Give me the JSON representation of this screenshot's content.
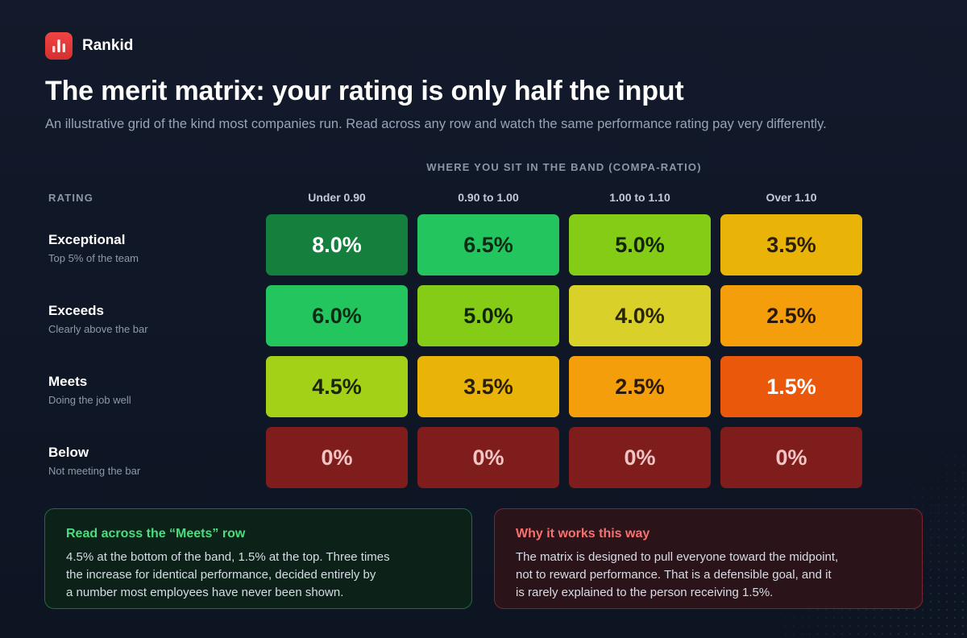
{
  "brand": {
    "name": "Rankid",
    "logo_icon": "bar-chart-icon",
    "logo_color": "#e53935"
  },
  "header": {
    "title": "The merit matrix: your rating is only half the input",
    "subtitle": "An illustrative grid of the kind most companies run. Read across any row and watch the same performance rating pay very differently."
  },
  "chart_data": {
    "type": "heatmap",
    "title": "The merit matrix: your rating is only half the input",
    "x_axis_title": "WHERE YOU SIT IN THE BAND (COMPA-RATIO)",
    "y_axis_title": "RATING",
    "columns": [
      "Under 0.90",
      "0.90 to 1.00",
      "1.00 to 1.10",
      "Over 1.10"
    ],
    "rows": [
      {
        "name": "Exceptional",
        "description": "Top 5% of the team"
      },
      {
        "name": "Exceeds",
        "description": "Clearly above the bar"
      },
      {
        "name": "Meets",
        "description": "Doing the job well"
      },
      {
        "name": "Below",
        "description": "Not meeting the bar"
      }
    ],
    "values": [
      [
        8.0,
        6.5,
        5.0,
        3.5
      ],
      [
        6.0,
        5.0,
        4.0,
        2.5
      ],
      [
        4.5,
        3.5,
        2.5,
        1.5
      ],
      [
        0,
        0,
        0,
        0
      ]
    ],
    "labels": [
      [
        "8.0%",
        "6.5%",
        "5.0%",
        "3.5%"
      ],
      [
        "6.0%",
        "5.0%",
        "4.0%",
        "2.5%"
      ],
      [
        "4.5%",
        "3.5%",
        "2.5%",
        "1.5%"
      ],
      [
        "0%",
        "0%",
        "0%",
        "0%"
      ]
    ],
    "cell_colors": [
      [
        "#15803d",
        "#22c55e",
        "#84cc16",
        "#eab308"
      ],
      [
        "#22c55e",
        "#84cc16",
        "#d9d02a",
        "#f59e0b"
      ],
      [
        "#a3d117",
        "#eab308",
        "#f59e0b",
        "#ea580c"
      ],
      [
        "#7f1d1d",
        "#7f1d1d",
        "#7f1d1d",
        "#7f1d1d"
      ]
    ],
    "text_colors": [
      [
        "#ffffff",
        "#0d2a14",
        "#112407",
        "#2a1f05"
      ],
      [
        "#0d2a14",
        "#112407",
        "#2a2505",
        "#2a1a05"
      ],
      [
        "#1a2607",
        "#2a1f05",
        "#2a1a05",
        "#ffffff"
      ],
      [
        "#f3c4c4",
        "#f3c4c4",
        "#f3c4c4",
        "#f3c4c4"
      ]
    ]
  },
  "callouts": {
    "left": {
      "title": "Read across the “Meets” row",
      "lines": [
        "4.5% at the bottom of the band, 1.5% at the top. Three times",
        "the increase for identical performance, decided entirely by",
        "a number most employees have never been shown."
      ]
    },
    "right": {
      "title": "Why it works this way",
      "lines": [
        "The matrix is designed to pull everyone toward the midpoint,",
        "not to reward performance. That is a defensible goal, and it",
        "is rarely explained to the person receiving 1.5%."
      ]
    }
  }
}
